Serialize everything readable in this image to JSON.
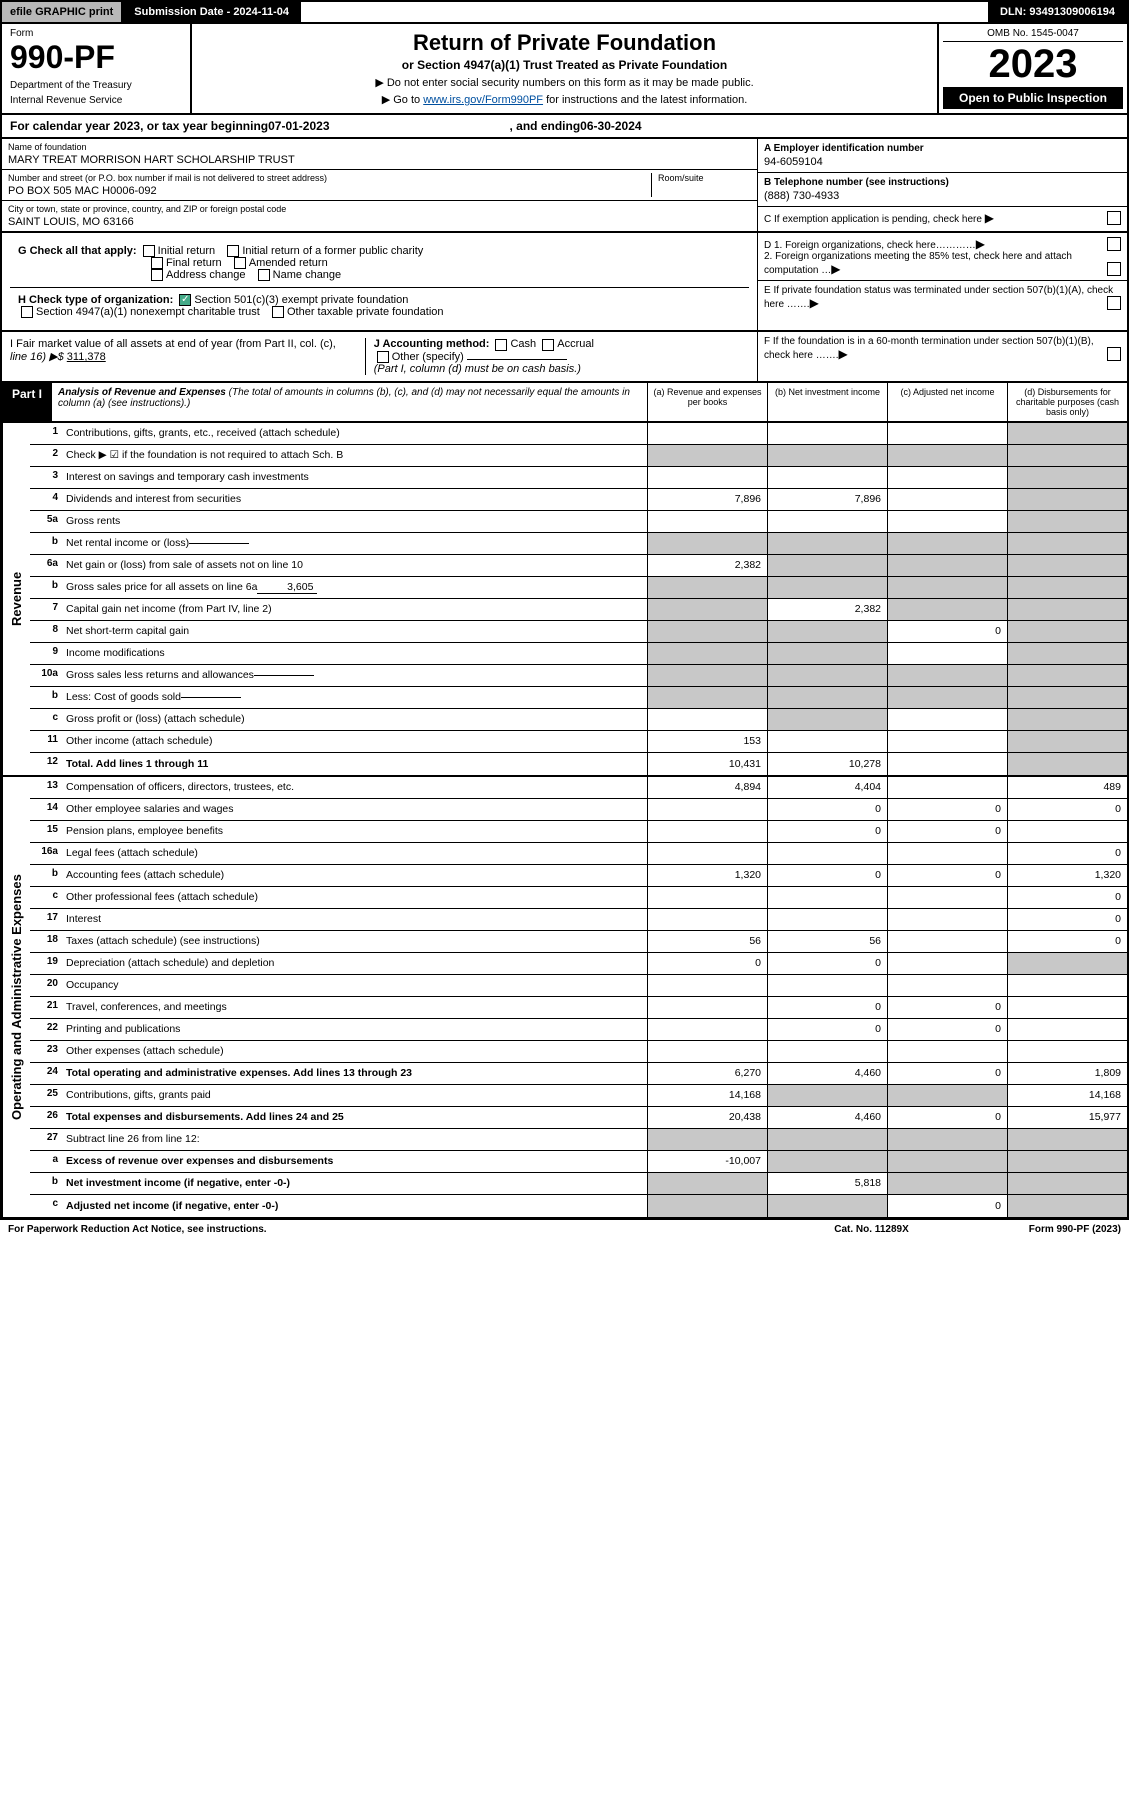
{
  "topbar": {
    "efile": "efile GRAPHIC print",
    "submission_label": "Submission Date - 2024-11-04",
    "dln": "DLN: 93491309006194"
  },
  "header": {
    "form_label": "Form",
    "form_num": "990-PF",
    "dept": "Department of the Treasury",
    "irs": "Internal Revenue Service",
    "title": "Return of Private Foundation",
    "subtitle": "or Section 4947(a)(1) Trust Treated as Private Foundation",
    "note1": "▶ Do not enter social security numbers on this form as it may be made public.",
    "note2_pre": "▶ Go to ",
    "note2_link": "www.irs.gov/Form990PF",
    "note2_post": " for instructions and the latest information.",
    "omb": "OMB No. 1545-0047",
    "year": "2023",
    "open": "Open to Public Inspection"
  },
  "period": {
    "text_pre": "For calendar year 2023, or tax year beginning ",
    "begin": "07-01-2023",
    "mid": ", and ending ",
    "end": "06-30-2024"
  },
  "identity": {
    "name_label": "Name of foundation",
    "name": "MARY TREAT MORRISON HART SCHOLARSHIP TRUST",
    "addr_label": "Number and street (or P.O. box number if mail is not delivered to street address)",
    "addr": "PO BOX 505 MAC H0006-092",
    "room_label": "Room/suite",
    "city_label": "City or town, state or province, country, and ZIP or foreign postal code",
    "city": "SAINT LOUIS, MO  63166",
    "ein_label": "A Employer identification number",
    "ein": "94-6059104",
    "phone_label": "B Telephone number (see instructions)",
    "phone": "(888) 730-4933",
    "c_label": "C If exemption application is pending, check here",
    "d1": "D 1. Foreign organizations, check here…………",
    "d2": "2. Foreign organizations meeting the 85% test, check here and attach computation …",
    "e_label": "E If private foundation status was terminated under section 507(b)(1)(A), check here …….",
    "f_label": "F If the foundation is in a 60-month termination under section 507(b)(1)(B), check here …….",
    "g_label": "G Check all that apply:",
    "g_opts": [
      "Initial return",
      "Initial return of a former public charity",
      "Final return",
      "Amended return",
      "Address change",
      "Name change"
    ],
    "h_label": "H Check type of organization:",
    "h1": "Section 501(c)(3) exempt private foundation",
    "h2": "Section 4947(a)(1) nonexempt charitable trust",
    "h3": "Other taxable private foundation",
    "i_label": "I Fair market value of all assets at end of year (from Part II, col. (c),",
    "i_line": "line 16) ▶$",
    "i_value": "311,378",
    "j_label": "J Accounting method:",
    "j_opts": [
      "Cash",
      "Accrual"
    ],
    "j_other": "Other (specify)",
    "j_note": "(Part I, column (d) must be on cash basis.)"
  },
  "part1": {
    "label": "Part I",
    "title": "Analysis of Revenue and Expenses",
    "title_note": "(The total of amounts in columns (b), (c), and (d) may not necessarily equal the amounts in column (a) (see instructions).)",
    "cols": {
      "a": "(a) Revenue and expenses per books",
      "b": "(b) Net investment income",
      "c": "(c) Adjusted net income",
      "d": "(d) Disbursements for charitable purposes (cash basis only)"
    }
  },
  "sections": {
    "revenue": "Revenue",
    "oae": "Operating and Administrative Expenses"
  },
  "rows": [
    {
      "n": "1",
      "label": "Contributions, gifts, grants, etc., received (attach schedule)",
      "a": "",
      "b": "",
      "c": "",
      "d": "shaded"
    },
    {
      "n": "2",
      "label": "Check ▶ ☑ if the foundation is not required to attach Sch. B",
      "bold": false,
      "span": true
    },
    {
      "n": "3",
      "label": "Interest on savings and temporary cash investments",
      "a": "",
      "b": "",
      "c": "",
      "d": "shaded"
    },
    {
      "n": "4",
      "label": "Dividends and interest from securities",
      "a": "7,896",
      "b": "7,896",
      "c": "",
      "d": "shaded"
    },
    {
      "n": "5a",
      "label": "Gross rents",
      "a": "",
      "b": "",
      "c": "",
      "d": "shaded"
    },
    {
      "n": "b",
      "label": "Net rental income or (loss)",
      "inline": "",
      "span": true
    },
    {
      "n": "6a",
      "label": "Net gain or (loss) from sale of assets not on line 10",
      "a": "2,382",
      "b": "shaded",
      "c": "shaded",
      "d": "shaded"
    },
    {
      "n": "b",
      "label": "Gross sales price for all assets on line 6a",
      "inline": "3,605",
      "span": true
    },
    {
      "n": "7",
      "label": "Capital gain net income (from Part IV, line 2)",
      "a": "shaded",
      "b": "2,382",
      "c": "shaded",
      "d": "shaded"
    },
    {
      "n": "8",
      "label": "Net short-term capital gain",
      "a": "shaded",
      "b": "shaded",
      "c": "0",
      "d": "shaded"
    },
    {
      "n": "9",
      "label": "Income modifications",
      "a": "shaded",
      "b": "shaded",
      "c": "",
      "d": "shaded"
    },
    {
      "n": "10a",
      "label": "Gross sales less returns and allowances",
      "inline": "",
      "span": true
    },
    {
      "n": "b",
      "label": "Less: Cost of goods sold",
      "inline": "",
      "span": true
    },
    {
      "n": "c",
      "label": "Gross profit or (loss) (attach schedule)",
      "a": "",
      "b": "shaded",
      "c": "",
      "d": "shaded"
    },
    {
      "n": "11",
      "label": "Other income (attach schedule)",
      "a": "153",
      "b": "",
      "c": "",
      "d": "shaded"
    },
    {
      "n": "12",
      "label": "Total. Add lines 1 through 11",
      "bold": true,
      "a": "10,431",
      "b": "10,278",
      "c": "",
      "d": "shaded"
    }
  ],
  "exp_rows": [
    {
      "n": "13",
      "label": "Compensation of officers, directors, trustees, etc.",
      "a": "4,894",
      "b": "4,404",
      "c": "",
      "d": "489"
    },
    {
      "n": "14",
      "label": "Other employee salaries and wages",
      "a": "",
      "b": "0",
      "c": "0",
      "d": "0"
    },
    {
      "n": "15",
      "label": "Pension plans, employee benefits",
      "a": "",
      "b": "0",
      "c": "0",
      "d": ""
    },
    {
      "n": "16a",
      "label": "Legal fees (attach schedule)",
      "a": "",
      "b": "",
      "c": "",
      "d": "0"
    },
    {
      "n": "b",
      "label": "Accounting fees (attach schedule)",
      "a": "1,320",
      "b": "0",
      "c": "0",
      "d": "1,320"
    },
    {
      "n": "c",
      "label": "Other professional fees (attach schedule)",
      "a": "",
      "b": "",
      "c": "",
      "d": "0"
    },
    {
      "n": "17",
      "label": "Interest",
      "a": "",
      "b": "",
      "c": "",
      "d": "0"
    },
    {
      "n": "18",
      "label": "Taxes (attach schedule) (see instructions)",
      "a": "56",
      "b": "56",
      "c": "",
      "d": "0"
    },
    {
      "n": "19",
      "label": "Depreciation (attach schedule) and depletion",
      "a": "0",
      "b": "0",
      "c": "",
      "d": "shaded"
    },
    {
      "n": "20",
      "label": "Occupancy",
      "a": "",
      "b": "",
      "c": "",
      "d": ""
    },
    {
      "n": "21",
      "label": "Travel, conferences, and meetings",
      "a": "",
      "b": "0",
      "c": "0",
      "d": ""
    },
    {
      "n": "22",
      "label": "Printing and publications",
      "a": "",
      "b": "0",
      "c": "0",
      "d": ""
    },
    {
      "n": "23",
      "label": "Other expenses (attach schedule)",
      "a": "",
      "b": "",
      "c": "",
      "d": ""
    },
    {
      "n": "24",
      "label": "Total operating and administrative expenses. Add lines 13 through 23",
      "bold": true,
      "a": "6,270",
      "b": "4,460",
      "c": "0",
      "d": "1,809"
    },
    {
      "n": "25",
      "label": "Contributions, gifts, grants paid",
      "a": "14,168",
      "b": "shaded",
      "c": "shaded",
      "d": "14,168"
    },
    {
      "n": "26",
      "label": "Total expenses and disbursements. Add lines 24 and 25",
      "bold": true,
      "a": "20,438",
      "b": "4,460",
      "c": "0",
      "d": "15,977"
    },
    {
      "n": "27",
      "label": "Subtract line 26 from line 12:",
      "span": true
    },
    {
      "n": "a",
      "label": "Excess of revenue over expenses and disbursements",
      "bold": true,
      "a": "-10,007",
      "b": "shaded",
      "c": "shaded",
      "d": "shaded"
    },
    {
      "n": "b",
      "label": "Net investment income (if negative, enter -0-)",
      "bold": true,
      "a": "shaded",
      "b": "5,818",
      "c": "shaded",
      "d": "shaded"
    },
    {
      "n": "c",
      "label": "Adjusted net income (if negative, enter -0-)",
      "bold": true,
      "a": "shaded",
      "b": "shaded",
      "c": "0",
      "d": "shaded"
    }
  ],
  "footer": {
    "left": "For Paperwork Reduction Act Notice, see instructions.",
    "mid": "Cat. No. 11289X",
    "right": "Form 990-PF (2023)"
  }
}
